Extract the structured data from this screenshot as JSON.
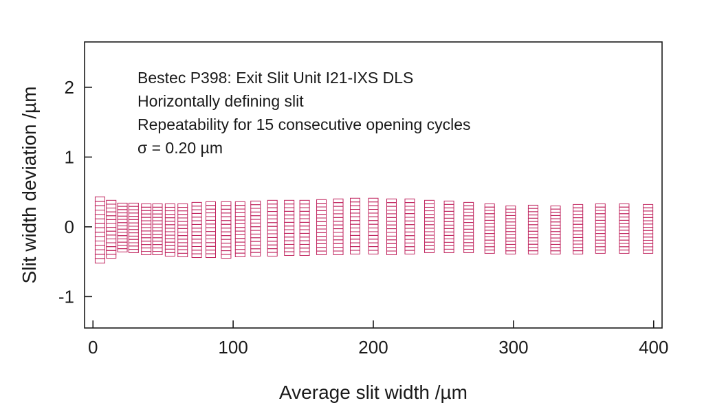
{
  "chart_data": {
    "type": "scatter",
    "marker": "open-square",
    "marker_color": "#c0245e",
    "xlabel": "Average slit width /µm",
    "ylabel": "Slit width deviation /µm",
    "xlim": [
      -6,
      406
    ],
    "ylim": [
      -1.45,
      2.65
    ],
    "xticks": [
      0,
      100,
      200,
      300,
      400
    ],
    "yticks": [
      2,
      1,
      0,
      -1
    ],
    "xtick_labels": [
      "0",
      "100",
      "200",
      "300",
      "400"
    ],
    "ytick_labels": [
      "2",
      "1",
      "0",
      "-1"
    ],
    "grid": false,
    "annotations": [
      "Bestec P398: Exit Slit Unit I21-IXS DLS",
      "Horizontally defining slit",
      "Repeatability for 15 consecutive opening cycles",
      "σ = 0.20 µm"
    ],
    "repetitions_per_width": 15,
    "columns": [
      {
        "x": 5,
        "min": -0.52,
        "max": 0.43
      },
      {
        "x": 13,
        "min": -0.45,
        "max": 0.38
      },
      {
        "x": 21,
        "min": -0.36,
        "max": 0.34
      },
      {
        "x": 29,
        "min": -0.37,
        "max": 0.34
      },
      {
        "x": 38,
        "min": -0.4,
        "max": 0.33
      },
      {
        "x": 46,
        "min": -0.4,
        "max": 0.33
      },
      {
        "x": 55,
        "min": -0.42,
        "max": 0.33
      },
      {
        "x": 64,
        "min": -0.43,
        "max": 0.33
      },
      {
        "x": 74,
        "min": -0.44,
        "max": 0.35
      },
      {
        "x": 84,
        "min": -0.44,
        "max": 0.36
      },
      {
        "x": 95,
        "min": -0.45,
        "max": 0.36
      },
      {
        "x": 105,
        "min": -0.43,
        "max": 0.36
      },
      {
        "x": 116,
        "min": -0.42,
        "max": 0.37
      },
      {
        "x": 128,
        "min": -0.42,
        "max": 0.38
      },
      {
        "x": 140,
        "min": -0.41,
        "max": 0.38
      },
      {
        "x": 151,
        "min": -0.41,
        "max": 0.38
      },
      {
        "x": 163,
        "min": -0.4,
        "max": 0.39
      },
      {
        "x": 175,
        "min": -0.4,
        "max": 0.4
      },
      {
        "x": 187,
        "min": -0.39,
        "max": 0.41
      },
      {
        "x": 200,
        "min": -0.39,
        "max": 0.41
      },
      {
        "x": 213,
        "min": -0.4,
        "max": 0.4
      },
      {
        "x": 226,
        "min": -0.39,
        "max": 0.4
      },
      {
        "x": 240,
        "min": -0.37,
        "max": 0.38
      },
      {
        "x": 254,
        "min": -0.37,
        "max": 0.37
      },
      {
        "x": 268,
        "min": -0.37,
        "max": 0.35
      },
      {
        "x": 283,
        "min": -0.38,
        "max": 0.33
      },
      {
        "x": 298,
        "min": -0.39,
        "max": 0.3
      },
      {
        "x": 314,
        "min": -0.39,
        "max": 0.31
      },
      {
        "x": 330,
        "min": -0.39,
        "max": 0.3
      },
      {
        "x": 346,
        "min": -0.39,
        "max": 0.32
      },
      {
        "x": 362,
        "min": -0.38,
        "max": 0.33
      },
      {
        "x": 379,
        "min": -0.38,
        "max": 0.33
      },
      {
        "x": 396,
        "min": -0.38,
        "max": 0.32
      }
    ]
  }
}
